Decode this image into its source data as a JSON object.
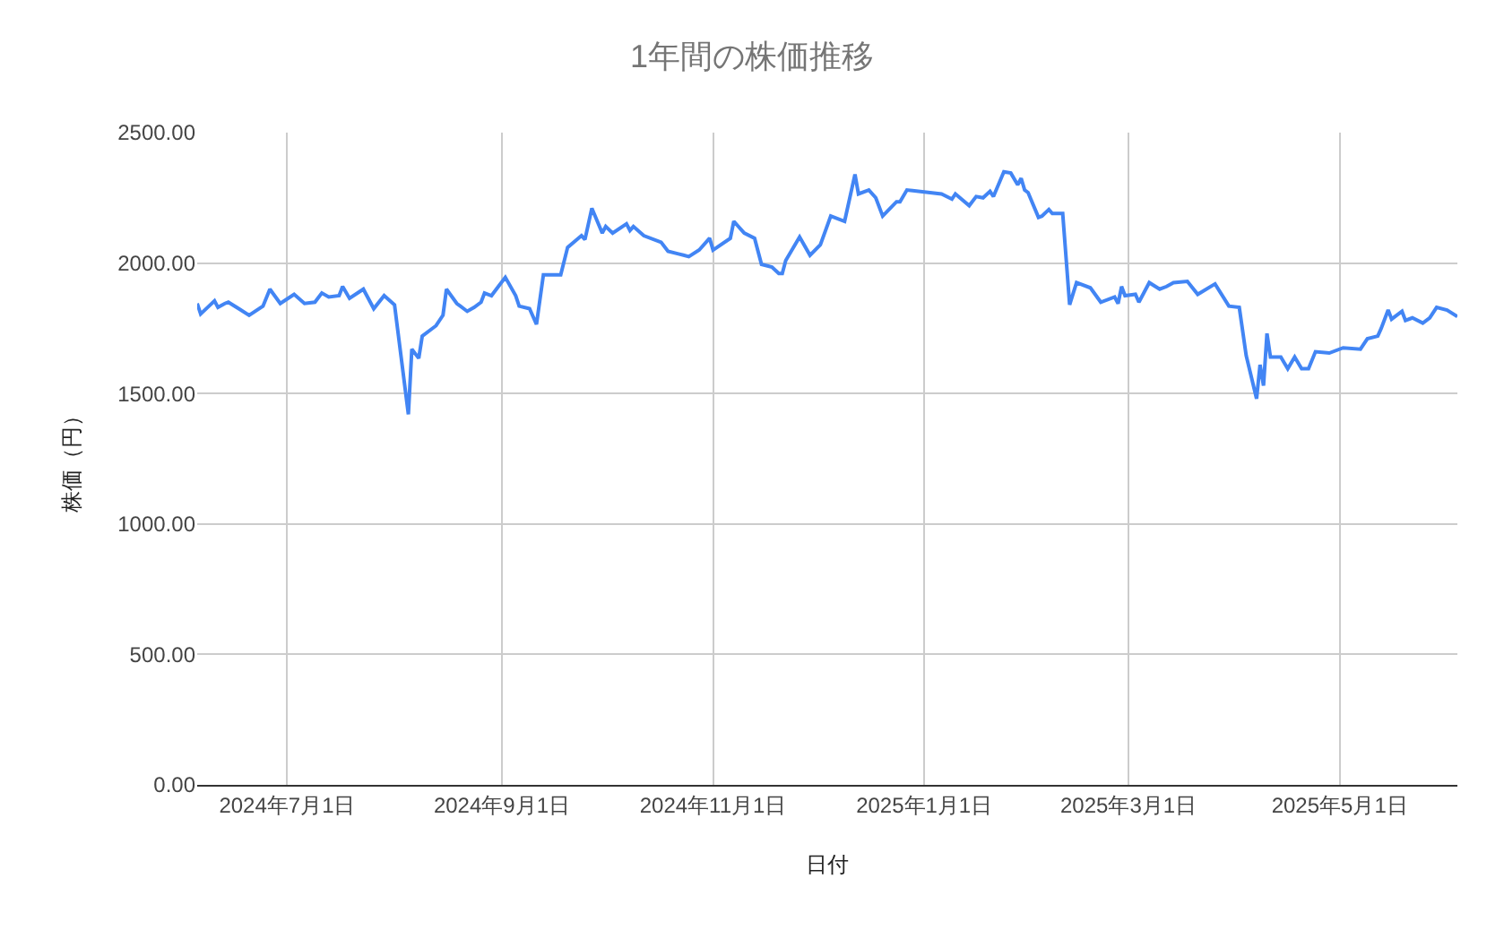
{
  "chart_data": {
    "type": "line",
    "title": "1年間の株価推移",
    "xlabel": "日付",
    "ylabel": "株価（円）",
    "x": [
      "2024-06-05",
      "2024-06-06",
      "2024-06-08",
      "2024-06-10",
      "2024-06-11",
      "2024-06-13",
      "2024-06-14",
      "2024-06-17",
      "2024-06-20",
      "2024-06-24",
      "2024-06-26",
      "2024-06-29",
      "2024-07-03",
      "2024-07-06",
      "2024-07-09",
      "2024-07-11",
      "2024-07-13",
      "2024-07-16",
      "2024-07-17",
      "2024-07-19",
      "2024-07-23",
      "2024-07-26",
      "2024-07-29",
      "2024-08-01",
      "2024-08-05",
      "2024-08-06",
      "2024-08-08",
      "2024-08-09",
      "2024-08-13",
      "2024-08-15",
      "2024-08-16",
      "2024-08-19",
      "2024-08-20",
      "2024-08-22",
      "2024-08-24",
      "2024-08-26",
      "2024-08-27",
      "2024-08-29",
      "2024-08-31",
      "2024-09-02",
      "2024-09-05",
      "2024-09-06",
      "2024-09-09",
      "2024-09-11",
      "2024-09-13",
      "2024-09-18",
      "2024-09-20",
      "2024-09-24",
      "2024-09-25",
      "2024-09-27",
      "2024-09-30",
      "2024-10-01",
      "2024-10-03",
      "2024-10-07",
      "2024-10-08",
      "2024-10-09",
      "2024-10-12",
      "2024-10-17",
      "2024-10-19",
      "2024-10-22",
      "2024-10-25",
      "2024-10-28",
      "2024-10-31",
      "2024-11-01",
      "2024-11-06",
      "2024-11-07",
      "2024-11-10",
      "2024-11-13",
      "2024-11-15",
      "2024-11-18",
      "2024-11-20",
      "2024-11-21",
      "2024-11-22",
      "2024-11-26",
      "2024-11-29",
      "2024-12-02",
      "2024-12-05",
      "2024-12-09",
      "2024-12-12",
      "2024-12-13",
      "2024-12-16",
      "2024-12-18",
      "2024-12-20",
      "2024-12-24",
      "2024-12-25",
      "2024-12-27",
      "2025-01-06",
      "2025-01-09",
      "2025-01-10",
      "2025-01-14",
      "2025-01-16",
      "2025-01-18",
      "2025-01-20",
      "2025-01-21",
      "2025-01-24",
      "2025-01-26",
      "2025-01-28",
      "2025-01-29",
      "2025-01-30",
      "2025-01-31",
      "2025-02-03",
      "2025-02-04",
      "2025-02-06",
      "2025-02-07",
      "2025-02-10",
      "2025-02-12",
      "2025-02-14",
      "2025-02-18",
      "2025-02-21",
      "2025-02-25",
      "2025-02-26",
      "2025-02-27",
      "2025-02-28",
      "2025-03-03",
      "2025-03-04",
      "2025-03-07",
      "2025-03-10",
      "2025-03-12",
      "2025-03-14",
      "2025-03-18",
      "2025-03-21",
      "2025-03-26",
      "2025-03-30",
      "2025-04-02",
      "2025-04-04",
      "2025-04-07",
      "2025-04-08",
      "2025-04-09",
      "2025-04-10",
      "2025-04-11",
      "2025-04-14",
      "2025-04-16",
      "2025-04-18",
      "2025-04-20",
      "2025-04-22",
      "2025-04-24",
      "2025-04-28",
      "2025-05-02",
      "2025-05-07",
      "2025-05-09",
      "2025-05-12",
      "2025-05-13",
      "2025-05-15",
      "2025-05-16",
      "2025-05-19",
      "2025-05-20",
      "2025-05-22",
      "2025-05-25",
      "2025-05-27",
      "2025-05-29",
      "2025-06-01",
      "2025-06-04"
    ],
    "series": [
      {
        "color": "#4285f4",
        "values": [
          1845,
          1805,
          1830,
          1855,
          1830,
          1845,
          1850,
          1825,
          1800,
          1835,
          1900,
          1845,
          1880,
          1845,
          1850,
          1885,
          1870,
          1875,
          1910,
          1865,
          1900,
          1825,
          1875,
          1840,
          1420,
          1670,
          1635,
          1720,
          1760,
          1800,
          1900,
          1845,
          1835,
          1815,
          1830,
          1850,
          1885,
          1875,
          1910,
          1945,
          1875,
          1835,
          1825,
          1765,
          1955,
          1955,
          2060,
          2105,
          2090,
          2210,
          2115,
          2140,
          2115,
          2150,
          2125,
          2140,
          2105,
          2080,
          2045,
          2035,
          2025,
          2050,
          2095,
          2050,
          2095,
          2160,
          2115,
          2095,
          1995,
          1985,
          1960,
          1960,
          2010,
          2100,
          2030,
          2070,
          2180,
          2160,
          2340,
          2265,
          2280,
          2250,
          2180,
          2235,
          2235,
          2280,
          2265,
          2245,
          2265,
          2220,
          2255,
          2250,
          2275,
          2255,
          2350,
          2345,
          2300,
          2325,
          2280,
          2270,
          2175,
          2180,
          2205,
          2190,
          2190,
          1840,
          1925,
          1905,
          1850,
          1870,
          1845,
          1910,
          1875,
          1880,
          1850,
          1925,
          1900,
          1910,
          1925,
          1930,
          1880,
          1920,
          1835,
          1830,
          1645,
          1480,
          1610,
          1530,
          1730,
          1640,
          1640,
          1595,
          1640,
          1595,
          1595,
          1660,
          1655,
          1675,
          1670,
          1710,
          1720,
          1750,
          1820,
          1785,
          1815,
          1780,
          1790,
          1770,
          1790,
          1830,
          1820,
          1795
        ]
      }
    ],
    "xlim": [
      "2024-06-05",
      "2025-06-04"
    ],
    "xticks": [
      {
        "value": "2024-07-01",
        "label": "2024年7月1日"
      },
      {
        "value": "2024-09-01",
        "label": "2024年9月1日"
      },
      {
        "value": "2024-11-01",
        "label": "2024年11月1日"
      },
      {
        "value": "2025-01-01",
        "label": "2025年1月1日"
      },
      {
        "value": "2025-03-01",
        "label": "2025年3月1日"
      },
      {
        "value": "2025-05-01",
        "label": "2025年5月1日"
      }
    ],
    "ylim": [
      0,
      2500
    ],
    "yticks": [
      {
        "value": 0,
        "label": "0.00"
      },
      {
        "value": 500,
        "label": "500.00"
      },
      {
        "value": 1000,
        "label": "1000.00"
      },
      {
        "value": 1500,
        "label": "1500.00"
      },
      {
        "value": 2000,
        "label": "2000.00"
      },
      {
        "value": 2500,
        "label": "2500.00"
      }
    ],
    "grid": true,
    "marker": "none",
    "line_style": "solid"
  }
}
